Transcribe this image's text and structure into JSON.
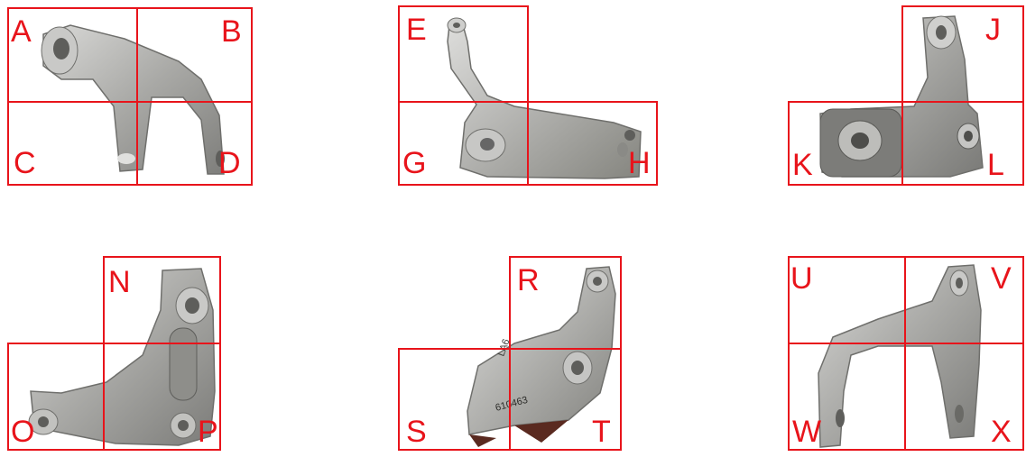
{
  "accent_color": "#e8141b",
  "metal_color": "#b8b8b6",
  "panels": [
    {
      "name": "part-1",
      "labels": [
        "A",
        "B",
        "C",
        "D"
      ]
    },
    {
      "name": "part-2",
      "labels": [
        "E",
        "G",
        "H"
      ]
    },
    {
      "name": "part-3",
      "labels": [
        "J",
        "K",
        "L"
      ]
    },
    {
      "name": "part-4",
      "labels": [
        "N",
        "O",
        "P"
      ]
    },
    {
      "name": "part-5",
      "labels": [
        "R",
        "S",
        "T"
      ]
    },
    {
      "name": "part-6",
      "labels": [
        "U",
        "V",
        "W",
        "X"
      ]
    }
  ],
  "stamped_text": [
    "LA6",
    "610463"
  ]
}
